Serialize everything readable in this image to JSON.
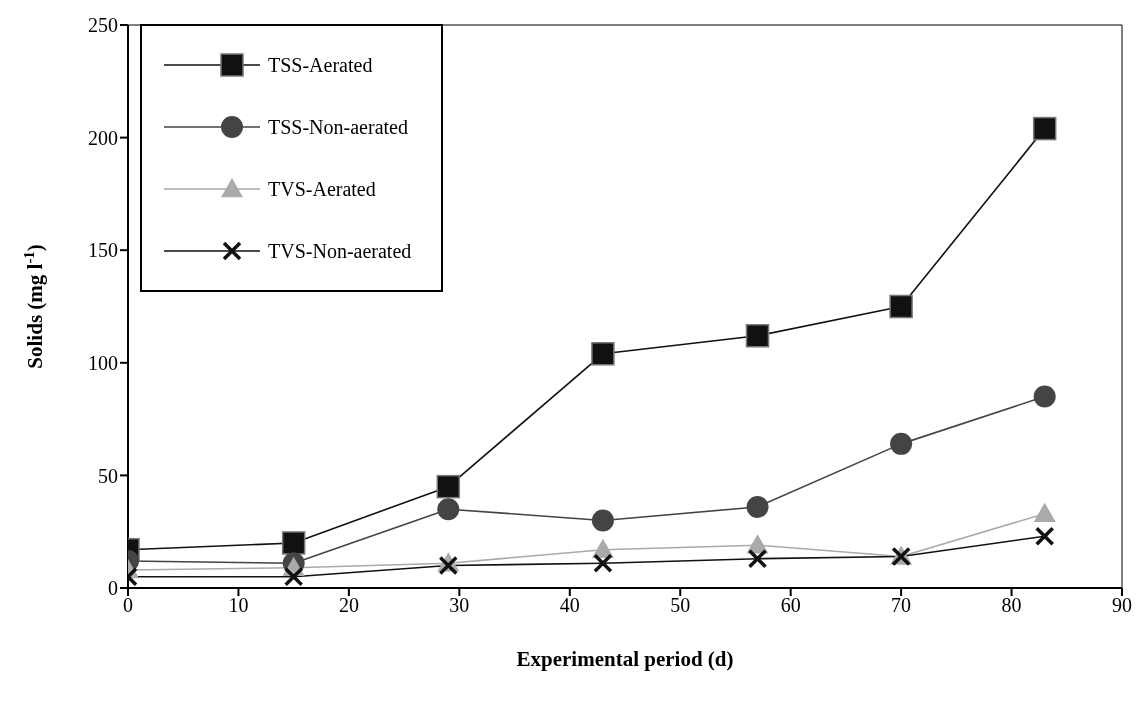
{
  "chart_data": {
    "type": "line",
    "xlabel": "Experimental period (d)",
    "ylabel": "Solids (mg l$^{-1}$)",
    "x": [
      0,
      15,
      29,
      43,
      57,
      70,
      83
    ],
    "series": [
      {
        "name": "TSS-Aerated",
        "color": "#111111",
        "marker": "square",
        "values": [
          17,
          20,
          45,
          104,
          112,
          125,
          204
        ]
      },
      {
        "name": "TSS-Non-aerated",
        "color": "#444444",
        "marker": "circle",
        "values": [
          12,
          11,
          35,
          30,
          36,
          64,
          85
        ]
      },
      {
        "name": "TVS-Aerated",
        "color": "#aaaaaa",
        "marker": "triangle",
        "values": [
          8,
          9,
          11,
          17,
          19,
          14,
          33
        ]
      },
      {
        "name": "TVS-Non-aerated",
        "color": "#111111",
        "marker": "cross",
        "values": [
          5,
          5,
          10,
          11,
          13,
          14,
          23
        ]
      }
    ],
    "xlim": [
      0,
      90
    ],
    "xticks": [
      0,
      10,
      20,
      30,
      40,
      50,
      60,
      70,
      80,
      90
    ],
    "ylim": [
      0,
      250
    ],
    "yticks": [
      0,
      50,
      100,
      150,
      200,
      250
    ],
    "grid": false,
    "legend": "top left",
    "line_style": "solid"
  }
}
